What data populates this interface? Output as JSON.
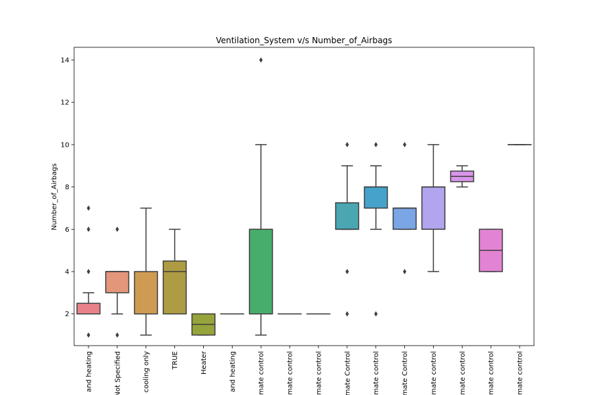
{
  "chart_data": {
    "type": "box",
    "title": "Ventilation_System v/s Number_of_Airbags",
    "xlabel": "",
    "ylabel": "Number_of_Airbags",
    "ylim": [
      0.5,
      14.6
    ],
    "yticks": [
      2,
      4,
      6,
      8,
      10,
      12,
      14
    ],
    "grid": false,
    "legend": "none",
    "categories": [
      "and heating",
      "Not Specified",
      "cooling only",
      "TRUE",
      "Heater",
      "and heating",
      "mate control",
      "mate control",
      "mate control",
      "mate Control",
      "mate control",
      "mate Control",
      "mate control",
      "mate control",
      "mate control",
      "mate control"
    ],
    "boxes": [
      {
        "q1": 2,
        "median": 2,
        "q3": 2.5,
        "whisker_low": 2,
        "whisker_high": 3,
        "outliers": [
          1,
          4,
          6,
          7
        ],
        "color": "#e8828a"
      },
      {
        "q1": 3,
        "median": 4,
        "q3": 4,
        "whisker_low": 2,
        "whisker_high": 4,
        "outliers": [
          1,
          6
        ],
        "color": "#e4967a"
      },
      {
        "q1": 2,
        "median": 2,
        "q3": 4,
        "whisker_low": 1,
        "whisker_high": 7,
        "outliers": [],
        "color": "#cf9a52"
      },
      {
        "q1": 2,
        "median": 4,
        "q3": 4.5,
        "whisker_low": 2,
        "whisker_high": 6,
        "outliers": [],
        "color": "#ad9c43"
      },
      {
        "q1": 1,
        "median": 1.5,
        "q3": 2,
        "whisker_low": 1,
        "whisker_high": 2,
        "outliers": [],
        "color": "#97a43c"
      },
      {
        "q1": 2,
        "median": 2,
        "q3": 2,
        "whisker_low": 2,
        "whisker_high": 2,
        "outliers": [],
        "color": "#6aad45"
      },
      {
        "q1": 2,
        "median": 2,
        "q3": 6,
        "whisker_low": 1,
        "whisker_high": 10,
        "outliers": [
          14
        ],
        "color": "#47ad6d"
      },
      {
        "q1": 2,
        "median": 2,
        "q3": 2,
        "whisker_low": 2,
        "whisker_high": 2,
        "outliers": [],
        "color": "#48ab8f"
      },
      {
        "q1": 2,
        "median": 2,
        "q3": 2,
        "whisker_low": 2,
        "whisker_high": 2,
        "outliers": [],
        "color": "#4aa9a0"
      },
      {
        "q1": 6,
        "median": 6,
        "q3": 7.25,
        "whisker_low": 6,
        "whisker_high": 9,
        "outliers": [
          2,
          4,
          10
        ],
        "color": "#4aa6b3"
      },
      {
        "q1": 7,
        "median": 8,
        "q3": 8,
        "whisker_low": 6,
        "whisker_high": 9,
        "outliers": [
          2,
          10
        ],
        "color": "#45a3cb"
      },
      {
        "q1": 6,
        "median": 7,
        "q3": 7,
        "whisker_low": 6,
        "whisker_high": 7,
        "outliers": [
          4,
          10
        ],
        "color": "#7aa6e6"
      },
      {
        "q1": 6,
        "median": 8,
        "q3": 8,
        "whisker_low": 4,
        "whisker_high": 10,
        "outliers": [],
        "color": "#b2a4ee"
      },
      {
        "q1": 8.25,
        "median": 8.5,
        "q3": 8.75,
        "whisker_low": 8,
        "whisker_high": 9,
        "outliers": [],
        "color": "#d895e9"
      },
      {
        "q1": 4,
        "median": 5,
        "q3": 6,
        "whisker_low": 4,
        "whisker_high": 6,
        "outliers": [],
        "color": "#e283d3"
      },
      {
        "q1": 10,
        "median": 10,
        "q3": 10,
        "whisker_low": 10,
        "whisker_high": 10,
        "outliers": [],
        "color": "#e68bb1"
      }
    ]
  }
}
